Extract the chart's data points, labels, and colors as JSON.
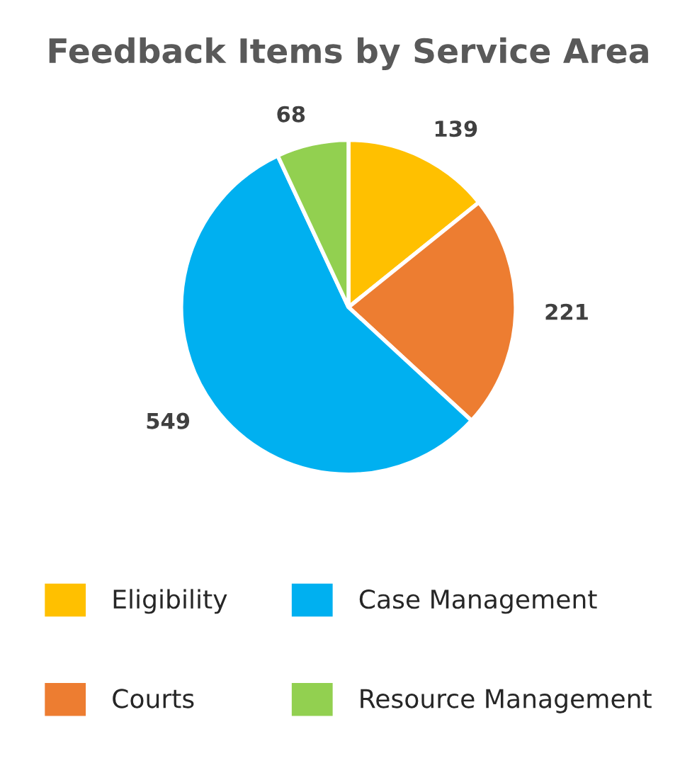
{
  "chart_data": {
    "type": "pie",
    "title": "Feedback Items by Service Area",
    "categories": [
      "Eligibility",
      "Courts",
      "Case Management",
      "Resource Management"
    ],
    "values": [
      139,
      221,
      549,
      68
    ],
    "colors": [
      "#ffc000",
      "#ed7d31",
      "#00b0f0",
      "#92d050"
    ],
    "data_labels": true,
    "legend": "bottom"
  }
}
